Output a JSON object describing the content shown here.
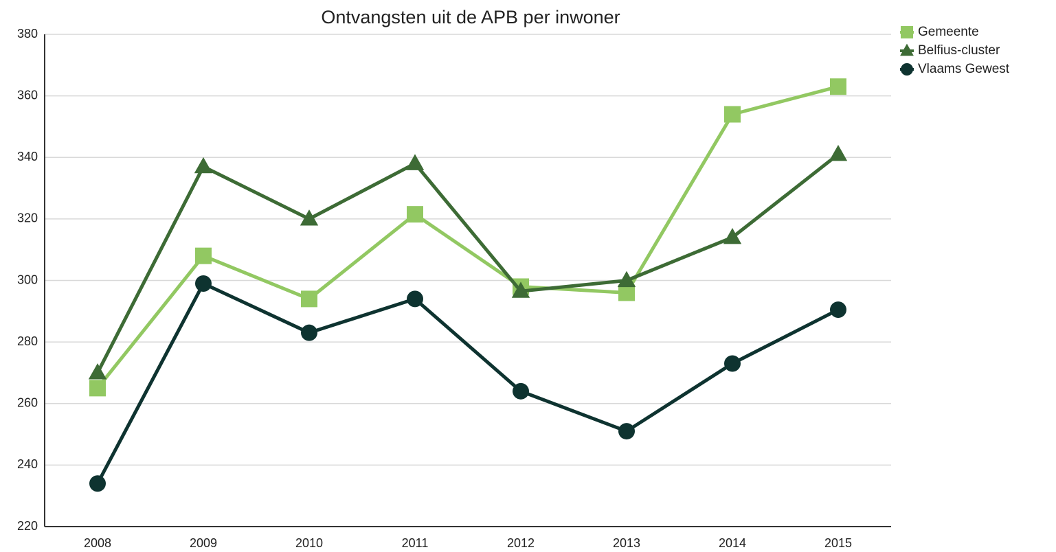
{
  "chart_data": {
    "type": "line",
    "title": "Ontvangsten uit de APB per inwoner",
    "categories": [
      "2008",
      "2009",
      "2010",
      "2011",
      "2012",
      "2013",
      "2014",
      "2015"
    ],
    "series": [
      {
        "name": "Gemeente",
        "color": "#92c862",
        "marker": "square",
        "values": [
          265,
          308,
          294,
          321.5,
          298,
          296,
          354,
          363
        ]
      },
      {
        "name": "Belfius-cluster",
        "color": "#3d6b35",
        "marker": "triangle",
        "values": [
          270,
          337,
          320,
          338,
          296.5,
          300,
          314,
          341
        ]
      },
      {
        "name": "Vlaams Gewest",
        "color": "#0e3330",
        "marker": "circle",
        "values": [
          234,
          299,
          283,
          294,
          264,
          251,
          273,
          290.5
        ]
      }
    ],
    "ylim": [
      220,
      380
    ],
    "yticks": [
      220,
      240,
      260,
      280,
      300,
      320,
      340,
      360,
      380
    ],
    "grid": true,
    "legend": "top-right"
  }
}
